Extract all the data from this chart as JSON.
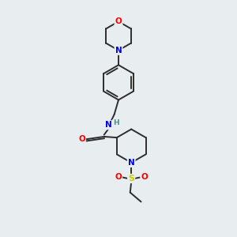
{
  "background_color": "#e8edf0",
  "bond_color": "#2d2d2d",
  "atom_colors": {
    "O": "#ff0000",
    "N": "#0000ee",
    "S": "#cccc00",
    "C": "#2d2d2d",
    "H": "#4a9090"
  },
  "bond_width": 1.4,
  "figsize": [
    3.0,
    3.0
  ],
  "dpi": 100
}
